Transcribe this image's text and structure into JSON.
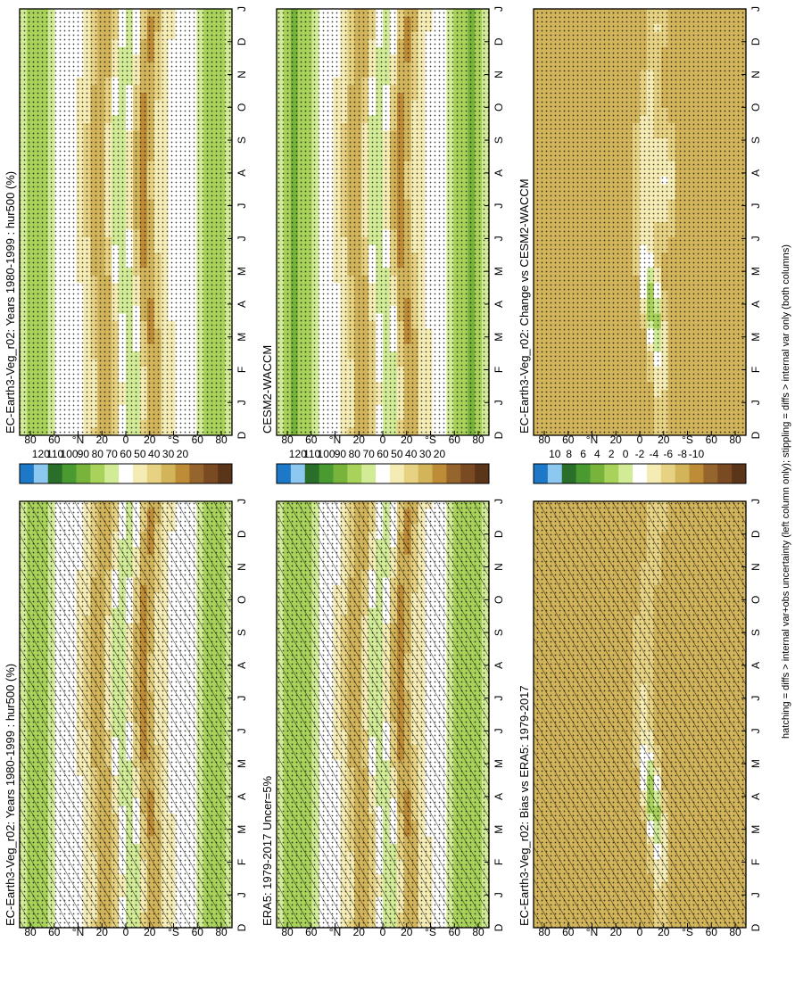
{
  "page": {
    "footnote": "hatching = diffs > internal var+obs uncertainty (left column only); stippling = diffs > internal var only (both columns)"
  },
  "axis_labels": {
    "months": [
      "D",
      "J",
      "F",
      "M",
      "A",
      "M",
      "J",
      "J",
      "A",
      "S",
      "O",
      "N",
      "D",
      "J"
    ],
    "lat": [
      "80",
      "60",
      "°N",
      "20",
      "0",
      "20",
      "°S",
      "60",
      "80"
    ]
  },
  "colorbars": {
    "absolute": [
      "120",
      "110",
      "100",
      "90",
      "80",
      "70",
      "60",
      "50",
      "40",
      "30",
      "20"
    ],
    "difference": [
      "10",
      "8",
      "6",
      "4",
      "2",
      "0",
      "-2",
      "-4",
      "-6",
      "-8",
      "-10"
    ]
  },
  "colors": {
    "absolute": [
      "#1e78c8",
      "#8cc8f0",
      "#2a6e2a",
      "#4a9a32",
      "#78b43c",
      "#a8d25a",
      "#d2eb96",
      "#ffffff",
      "#f5ebb4",
      "#e6d282",
      "#d2b45a",
      "#be8c37",
      "#96642d",
      "#7a4a23",
      "#5a3519"
    ],
    "difference": [
      "#1e78c8",
      "#8cc8f0",
      "#2a6e2a",
      "#4a9a32",
      "#78b43c",
      "#a8d25a",
      "#d2eb96",
      "#ffffff",
      "#f5ebb4",
      "#e6d282",
      "#d2b45a",
      "#be8c37",
      "#96642d",
      "#7a4a23",
      "#5a3519"
    ]
  },
  "chart_data": [
    {
      "type": "heatmap",
      "title": "EC-Earth3-Veg_r02: Years 1980-1999 : hur500 (%)",
      "x": [
        "D",
        "J",
        "F",
        "M",
        "A",
        "M",
        "J",
        "J",
        "A",
        "S",
        "O",
        "N",
        "D",
        "J"
      ],
      "y": [
        "80",
        "60",
        "°N",
        "20",
        "0",
        "20",
        "°S",
        "60",
        "80"
      ],
      "colorbar": "absolute",
      "overlay": "hatching and stippling"
    },
    {
      "type": "heatmap",
      "title": "EC-Earth3-Veg_r02: Years 1980-1999 : hur500 (%)",
      "x": [
        "D",
        "J",
        "F",
        "M",
        "A",
        "M",
        "J",
        "J",
        "A",
        "S",
        "O",
        "N",
        "D",
        "J"
      ],
      "y": [
        "80",
        "60",
        "°N",
        "20",
        "0",
        "20",
        "°S",
        "60",
        "80"
      ],
      "colorbar": "absolute",
      "overlay": "stippling"
    },
    {
      "type": "heatmap",
      "title": "ERA5: 1979-2017 Uncer=5%",
      "x": [
        "D",
        "J",
        "F",
        "M",
        "A",
        "M",
        "J",
        "J",
        "A",
        "S",
        "O",
        "N",
        "D",
        "J"
      ],
      "y": [
        "80",
        "60",
        "°N",
        "20",
        "0",
        "20",
        "°S",
        "60",
        "80"
      ],
      "colorbar": "absolute",
      "overlay": "hatching and stippling"
    },
    {
      "type": "heatmap",
      "title": "CESM2-WACCM",
      "x": [
        "D",
        "J",
        "F",
        "M",
        "A",
        "M",
        "J",
        "J",
        "A",
        "S",
        "O",
        "N",
        "D",
        "J"
      ],
      "y": [
        "80",
        "60",
        "°N",
        "20",
        "0",
        "20",
        "°S",
        "60",
        "80"
      ],
      "colorbar": "absolute",
      "overlay": "stippling"
    },
    {
      "type": "heatmap",
      "title": "EC-Earth3-Veg_r02: Bias vs ERA5: 1979-2017",
      "x": [
        "D",
        "J",
        "F",
        "M",
        "A",
        "M",
        "J",
        "J",
        "A",
        "S",
        "O",
        "N",
        "D",
        "J"
      ],
      "y": [
        "80",
        "60",
        "°N",
        "20",
        "0",
        "20",
        "°S",
        "60",
        "80"
      ],
      "colorbar": "difference",
      "overlay": "hatching and stippling"
    },
    {
      "type": "heatmap",
      "title": "EC-Earth3-Veg_r02: Change vs CESM2-WACCM",
      "x": [
        "D",
        "J",
        "F",
        "M",
        "A",
        "M",
        "J",
        "J",
        "A",
        "S",
        "O",
        "N",
        "D",
        "J"
      ],
      "y": [
        "80",
        "60",
        "°N",
        "20",
        "0",
        "20",
        "°S",
        "60",
        "80"
      ],
      "colorbar": "difference",
      "overlay": "stippling"
    }
  ]
}
